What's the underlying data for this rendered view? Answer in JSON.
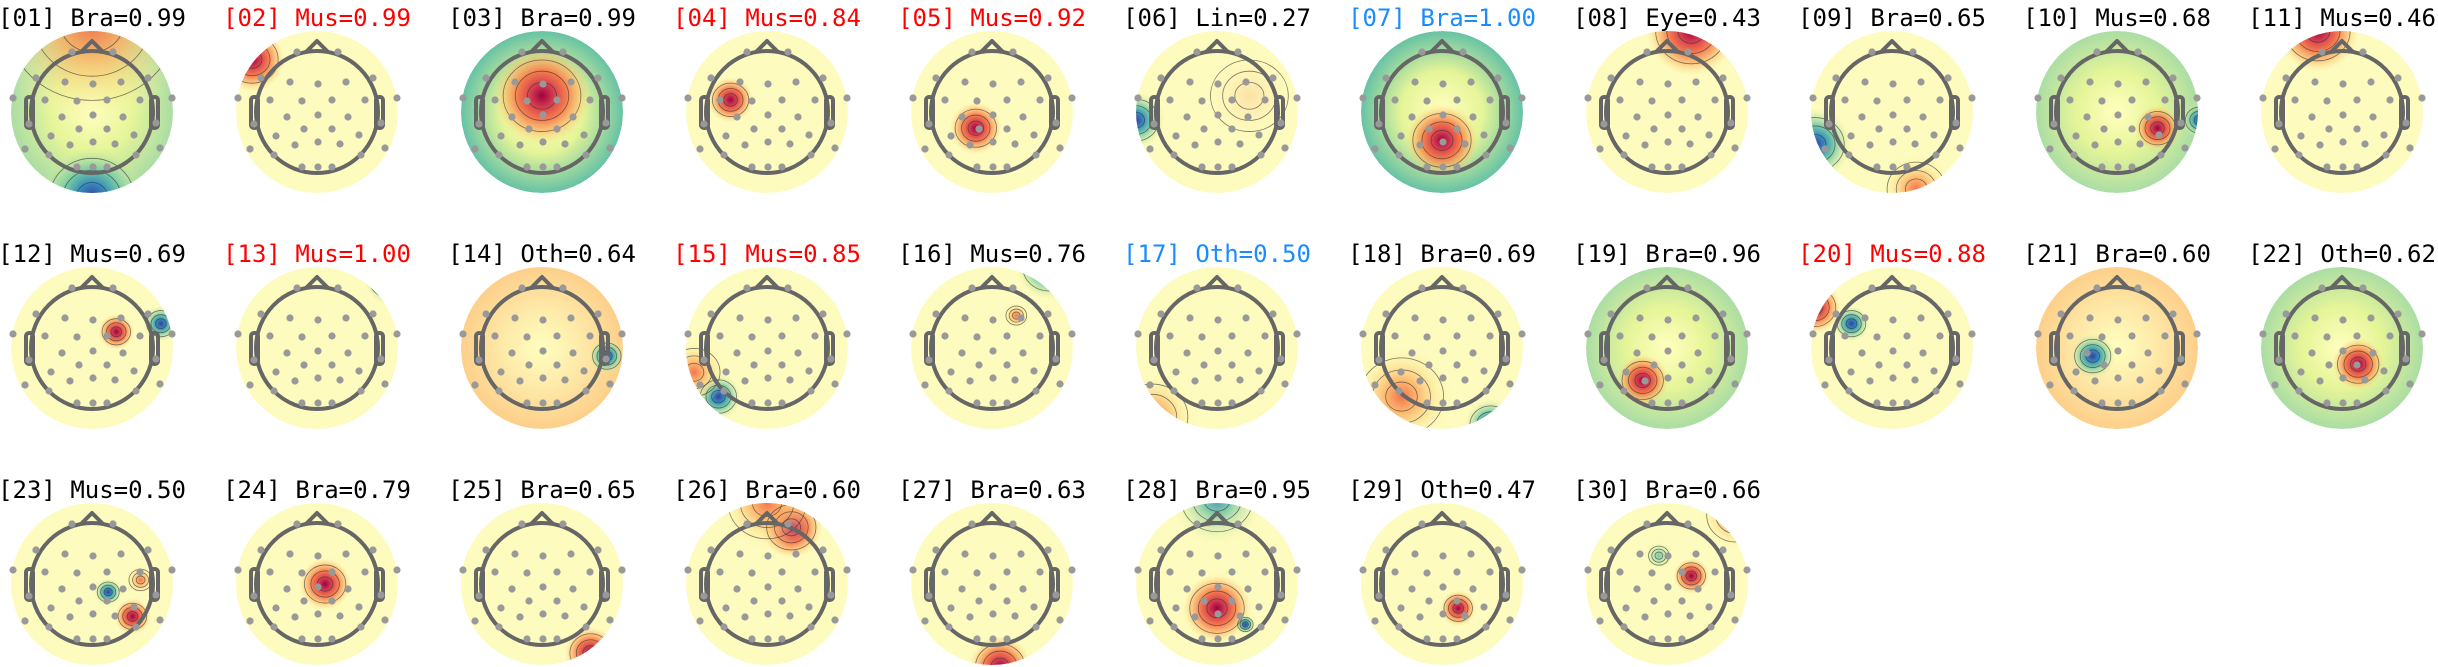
{
  "colors": {
    "default": "#000000",
    "red": "#ff0000",
    "blue": "#1a8cff"
  },
  "components": [
    {
      "title": "[01] Bra=0.99",
      "color": "default"
    },
    {
      "title": "[02] Mus=0.99",
      "color": "red"
    },
    {
      "title": "[03] Bra=0.99",
      "color": "default"
    },
    {
      "title": "[04] Mus=0.84",
      "color": "red"
    },
    {
      "title": "[05] Mus=0.92",
      "color": "red"
    },
    {
      "title": "[06] Lin=0.27",
      "color": "default"
    },
    {
      "title": "[07] Bra=1.00",
      "color": "blue"
    },
    {
      "title": "[08] Eye=0.43",
      "color": "default"
    },
    {
      "title": "[09] Bra=0.65",
      "color": "default"
    },
    {
      "title": "[10] Mus=0.68",
      "color": "default"
    },
    {
      "title": "[11] Mus=0.46",
      "color": "default"
    },
    {
      "title": "[12] Mus=0.69",
      "color": "default"
    },
    {
      "title": "[13] Mus=1.00",
      "color": "red"
    },
    {
      "title": "[14] Oth=0.64",
      "color": "default"
    },
    {
      "title": "[15] Mus=0.85",
      "color": "red"
    },
    {
      "title": "[16] Mus=0.76",
      "color": "default"
    },
    {
      "title": "[17] Oth=0.50",
      "color": "blue"
    },
    {
      "title": "[18] Bra=0.69",
      "color": "default"
    },
    {
      "title": "[19] Bra=0.96",
      "color": "default"
    },
    {
      "title": "[20] Mus=0.88",
      "color": "red"
    },
    {
      "title": "[21] Bra=0.60",
      "color": "default"
    },
    {
      "title": "[22] Oth=0.62",
      "color": "default"
    },
    {
      "title": "[23] Mus=0.50",
      "color": "default"
    },
    {
      "title": "[24] Bra=0.79",
      "color": "default"
    },
    {
      "title": "[25] Bra=0.65",
      "color": "default"
    },
    {
      "title": "[26] Bra=0.60",
      "color": "default"
    },
    {
      "title": "[27] Bra=0.63",
      "color": "default"
    },
    {
      "title": "[28] Bra=0.95",
      "color": "default"
    },
    {
      "title": "[29] Oth=0.47",
      "color": "default"
    },
    {
      "title": "[30] Bra=0.66",
      "color": "default"
    }
  ]
}
